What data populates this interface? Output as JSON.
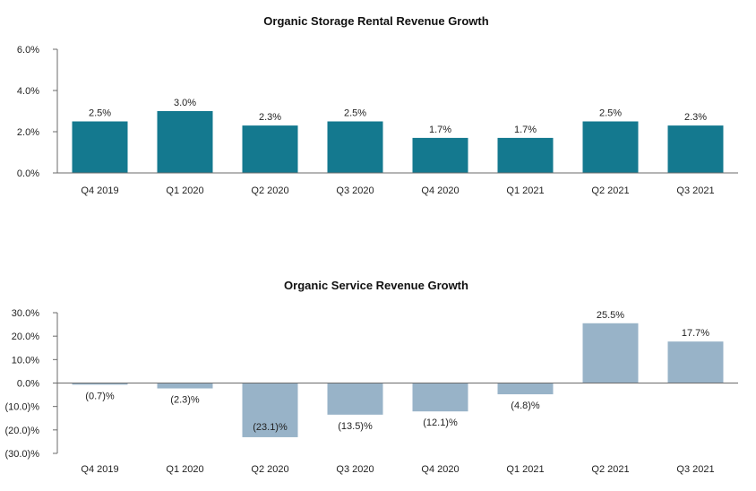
{
  "colors": {
    "rental_bar": "#14798f",
    "service_bar": "#98b3c8",
    "axis": "#6b6b6b",
    "inside_label": "#ffffff"
  },
  "chart_data": [
    {
      "type": "bar",
      "title": "Organic Storage Rental Revenue Growth",
      "categories": [
        "Q4 2019",
        "Q1 2020",
        "Q2 2020",
        "Q3 2020",
        "Q4 2020",
        "Q1 2021",
        "Q2 2021",
        "Q3 2021"
      ],
      "values": [
        2.5,
        3.0,
        2.3,
        2.5,
        1.7,
        1.7,
        2.5,
        2.3
      ],
      "labels": [
        "2.5%",
        "3.0%",
        "2.3%",
        "2.5%",
        "1.7%",
        "1.7%",
        "2.5%",
        "2.3%"
      ],
      "yticks": [
        0,
        2,
        4,
        6
      ],
      "ytick_labels": [
        "0.0%",
        "2.0%",
        "4.0%",
        "6.0%"
      ],
      "ylim": [
        0,
        6
      ],
      "grid": false,
      "legend": "none"
    },
    {
      "type": "bar",
      "title": "Organic Service Revenue Growth",
      "categories": [
        "Q4 2019",
        "Q1 2020",
        "Q2 2020",
        "Q3 2020",
        "Q4 2020",
        "Q1 2021",
        "Q2 2021",
        "Q3 2021"
      ],
      "values": [
        -0.7,
        -2.3,
        -23.1,
        -13.5,
        -12.1,
        -4.8,
        25.5,
        17.7
      ],
      "labels": [
        "(0.7)%",
        "(2.3)%",
        "(23.1)%",
        "(13.5)%",
        "(12.1)%",
        "(4.8)%",
        "25.5%",
        "17.7%"
      ],
      "yticks": [
        -30,
        -20,
        -10,
        0,
        10,
        20,
        30
      ],
      "ytick_labels": [
        "(30.0)%",
        "(20.0)%",
        "(10.0)%",
        "0.0%",
        "10.0%",
        "20.0%",
        "30.0%"
      ],
      "ylim": [
        -30,
        30
      ],
      "grid": false,
      "legend": "none"
    }
  ]
}
